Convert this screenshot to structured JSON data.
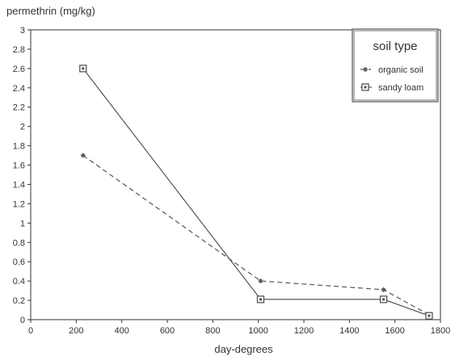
{
  "chart_data": {
    "type": "line",
    "ylabel": "permethrin  (mg/kg)",
    "xlabel": "day-degrees",
    "xlim": [
      0,
      1800
    ],
    "ylim": [
      0,
      3
    ],
    "xticks": [
      0,
      200,
      400,
      600,
      800,
      1000,
      1200,
      1400,
      1600,
      1800
    ],
    "yticks": [
      0,
      0.2,
      0.4,
      0.6,
      0.8,
      1,
      1.2,
      1.4,
      1.6,
      1.8,
      2,
      2.2,
      2.4,
      2.6,
      2.8,
      3
    ],
    "grid": false,
    "legend": {
      "title": "soil type",
      "position": "top-right",
      "entries": [
        "organic soil",
        "sandy loam"
      ]
    },
    "series": [
      {
        "name": "organic soil",
        "line_style": "dashed",
        "marker": "star",
        "x": [
          230,
          1010,
          1550,
          1750
        ],
        "y": [
          1.7,
          0.4,
          0.31,
          0.05
        ]
      },
      {
        "name": "sandy loam",
        "line_style": "solid",
        "marker": "square",
        "x": [
          230,
          1010,
          1550,
          1750
        ],
        "y": [
          2.6,
          0.21,
          0.21,
          0.04
        ]
      }
    ],
    "colors": {
      "line": "#555555",
      "axis": "#333333"
    }
  }
}
